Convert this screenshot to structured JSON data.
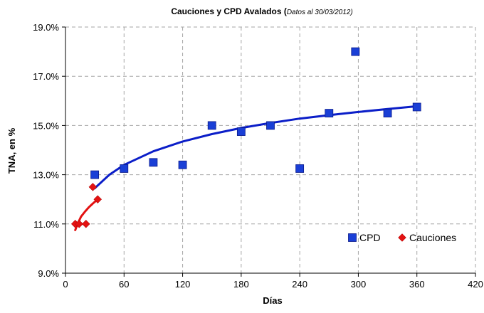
{
  "chart_data": {
    "type": "scatter",
    "title": "Cauciones y CPD Avalados (",
    "title_note": "Datos al 30/03/2012)",
    "xlabel": "Días",
    "ylabel": "TNA, en %",
    "xlim": [
      0,
      420
    ],
    "ylim": [
      9.0,
      19.0
    ],
    "x_ticks": [
      "0",
      "60",
      "120",
      "180",
      "240",
      "300",
      "360",
      "420"
    ],
    "y_ticks": [
      "9.0%",
      "11.0%",
      "13.0%",
      "15.0%",
      "17.0%",
      "19.0%"
    ],
    "grid": true,
    "legend_position": "bottom-right",
    "series": [
      {
        "name": "CPD",
        "marker": "square",
        "color": "#1a3fd6",
        "points": [
          {
            "x": 30,
            "y": 13.0
          },
          {
            "x": 60,
            "y": 13.25
          },
          {
            "x": 90,
            "y": 13.5
          },
          {
            "x": 120,
            "y": 13.4
          },
          {
            "x": 150,
            "y": 15.0
          },
          {
            "x": 180,
            "y": 14.75
          },
          {
            "x": 210,
            "y": 15.0
          },
          {
            "x": 240,
            "y": 13.25
          },
          {
            "x": 270,
            "y": 15.5
          },
          {
            "x": 297,
            "y": 18.0
          },
          {
            "x": 330,
            "y": 15.5
          },
          {
            "x": 360,
            "y": 15.75
          }
        ],
        "trendline": {
          "type": "logarithmic",
          "color": "#0b1ec8",
          "points": [
            {
              "x": 30,
              "y": 12.45
            },
            {
              "x": 45,
              "y": 13.0
            },
            {
              "x": 60,
              "y": 13.4
            },
            {
              "x": 90,
              "y": 13.95
            },
            {
              "x": 120,
              "y": 14.35
            },
            {
              "x": 150,
              "y": 14.65
            },
            {
              "x": 180,
              "y": 14.9
            },
            {
              "x": 210,
              "y": 15.1
            },
            {
              "x": 240,
              "y": 15.28
            },
            {
              "x": 270,
              "y": 15.42
            },
            {
              "x": 300,
              "y": 15.55
            },
            {
              "x": 330,
              "y": 15.67
            },
            {
              "x": 360,
              "y": 15.78
            }
          ]
        }
      },
      {
        "name": "Cauciones",
        "marker": "diamond",
        "color": "#e31212",
        "points": [
          {
            "x": 10,
            "y": 11.0
          },
          {
            "x": 14,
            "y": 11.0
          },
          {
            "x": 21,
            "y": 11.0
          },
          {
            "x": 28,
            "y": 12.5
          },
          {
            "x": 33,
            "y": 12.0
          }
        ],
        "trendline": {
          "type": "logarithmic",
          "color": "#e31212",
          "points": [
            {
              "x": 10,
              "y": 10.75
            },
            {
              "x": 13,
              "y": 11.05
            },
            {
              "x": 16,
              "y": 11.3
            },
            {
              "x": 20,
              "y": 11.5
            },
            {
              "x": 24,
              "y": 11.68
            },
            {
              "x": 28,
              "y": 11.83
            },
            {
              "x": 33,
              "y": 12.0
            }
          ]
        }
      }
    ]
  }
}
